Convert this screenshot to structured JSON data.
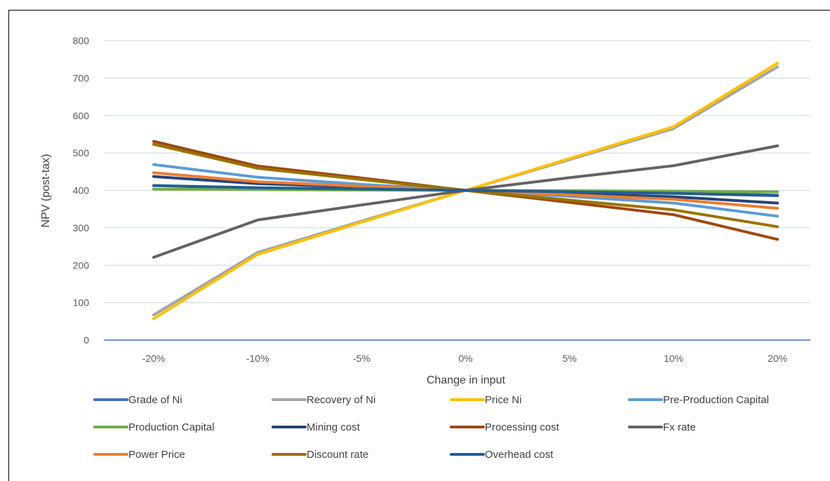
{
  "chart_data": {
    "type": "line",
    "xlabel": "Change in input",
    "ylabel": "NPV (post-tax)",
    "categories": [
      "-20%",
      "-10%",
      "-5%",
      "0%",
      "5%",
      "10%",
      "20%"
    ],
    "ylim": [
      0,
      800
    ],
    "yticks": [
      "0",
      "100",
      "200",
      "300",
      "400",
      "500",
      "600",
      "700",
      "800"
    ],
    "grid": "horizontal",
    "legend_position": "bottom",
    "series": [
      {
        "name": "Grade of Ni",
        "color": "#4472C4",
        "values": [
          413,
          405,
          403,
          400,
          398,
          395,
          387
        ]
      },
      {
        "name": "Recovery of Ni",
        "color": "#A5A5A5",
        "values": [
          67,
          234,
          318,
          400,
          482,
          565,
          730
        ]
      },
      {
        "name": "Price Ni",
        "color": "#FFC000",
        "values": [
          57,
          229,
          315,
          400,
          485,
          570,
          740
        ]
      },
      {
        "name": "Pre-Production Capital",
        "color": "#5B9BD5",
        "values": [
          469,
          435,
          416,
          400,
          384,
          366,
          331
        ]
      },
      {
        "name": "Production Capital",
        "color": "#70AD47",
        "values": [
          403,
          402,
          401,
          400,
          399,
          398,
          396
        ]
      },
      {
        "name": "Mining cost",
        "color": "#264478",
        "values": [
          437,
          418,
          409,
          400,
          391,
          383,
          366
        ]
      },
      {
        "name": "Processing cost",
        "color": "#9E480E",
        "values": [
          531,
          465,
          433,
          400,
          368,
          335,
          269
        ]
      },
      {
        "name": "Fx rate",
        "color": "#636363",
        "values": [
          221,
          321,
          361,
          400,
          434,
          466,
          519
        ]
      },
      {
        "name": "Power Price",
        "color": "#ED7D31",
        "values": [
          447,
          423,
          411,
          400,
          388,
          376,
          352
        ]
      },
      {
        "name": "Discount rate",
        "color": "#997300",
        "values": [
          523,
          459,
          429,
          400,
          374,
          348,
          303
        ]
      },
      {
        "name": "Overhead cost",
        "color": "#255E91",
        "values": [
          413,
          407,
          404,
          400,
          396,
          392,
          386
        ]
      }
    ]
  }
}
